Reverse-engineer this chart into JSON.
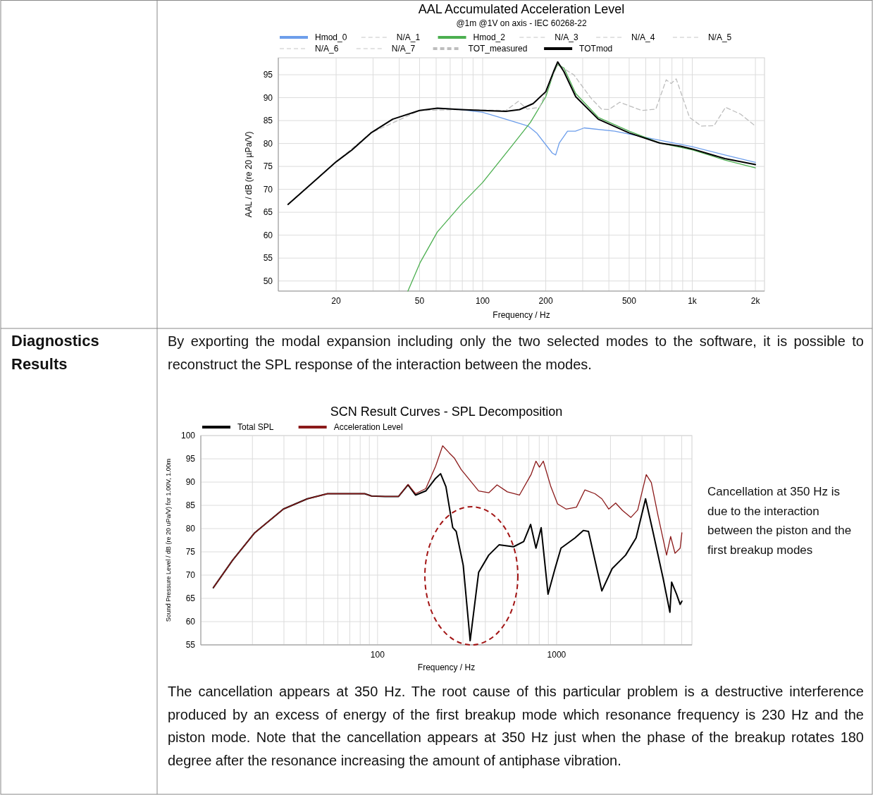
{
  "chart_data": [
    {
      "type": "line",
      "title": "AAL Accumulated Acceleration Level",
      "subtitle": "@1m @1V on axis - IEC 60268-22",
      "xlabel": "Frequency / Hz",
      "ylabel": "AAL / dB (re 20 µPa/V)",
      "log": "x",
      "grid": true,
      "legend": "top",
      "xlim": [
        10.6,
        2210
      ],
      "ylim": [
        47.8,
        98.7
      ],
      "xticks": [
        20,
        {
          "value": 30,
          "label": null
        },
        {
          "value": 40,
          "label": null
        },
        50,
        {
          "value": 60,
          "label": null
        },
        {
          "value": 70,
          "label": null
        },
        {
          "value": 80,
          "label": null
        },
        {
          "value": 90,
          "label": null
        },
        100,
        200,
        {
          "value": 300,
          "label": null
        },
        {
          "value": 400,
          "label": null
        },
        500,
        {
          "value": 600,
          "label": null
        },
        {
          "value": 700,
          "label": null
        },
        {
          "value": 800,
          "label": null
        },
        {
          "value": 900,
          "label": null
        },
        {
          "value": 1000,
          "label": "1k"
        },
        {
          "value": 2000,
          "label": "2k"
        }
      ],
      "yticks": [
        50,
        55,
        60,
        65,
        70,
        75,
        80,
        85,
        90,
        95
      ],
      "series": [
        {
          "name": "Hmod_0",
          "color": "#6d9eeb",
          "line_style": "solid",
          "x": [
            60.8,
            79,
            100,
            121,
            165,
            181,
            215,
            223,
            232,
            254,
            277,
            305,
            427,
            620,
            1000,
            1430,
            2000
          ],
          "values": [
            87.7,
            87.4,
            86.8,
            85.7,
            83.8,
            82.3,
            77.9,
            77.5,
            80.1,
            82.7,
            82.7,
            83.4,
            82.7,
            81.2,
            79.3,
            77.5,
            75.9
          ]
        },
        {
          "name": "N/A_1",
          "color": "#d9d9d9",
          "line_style": "dashed"
        },
        {
          "name": "Hmod_2",
          "color": "#4caf50",
          "line_style": "solid",
          "x": [
            44,
            50.3,
            60.8,
            79,
            100,
            139,
            169,
            200,
            218,
            228,
            244,
            278,
            356,
            500,
            700,
            1000,
            1430,
            2000
          ],
          "values": [
            47.8,
            54.0,
            60.7,
            66.7,
            71.5,
            79.7,
            84.6,
            90.2,
            95.4,
            97.2,
            96.5,
            90.9,
            85.7,
            82.7,
            80.1,
            78.6,
            76.4,
            74.7
          ]
        },
        {
          "name": "N/A_3",
          "color": "#d9d9d9",
          "line_style": "dashed"
        },
        {
          "name": "N/A_4",
          "color": "#d9d9d9",
          "line_style": "dashed"
        },
        {
          "name": "N/A_5",
          "color": "#d9d9d9",
          "line_style": "dashed"
        },
        {
          "name": "N/A_6",
          "color": "#d9d9d9",
          "line_style": "dashed"
        },
        {
          "name": "N/A_7",
          "color": "#d9d9d9",
          "line_style": "dashed"
        },
        {
          "name": "TOT_measured",
          "color": "#bdbdbd",
          "line_style": "dashed",
          "x": [
            11.8,
            20,
            29.3,
            50,
            79,
            129,
            148,
            163,
            187,
            227,
            272,
            330,
            369,
            399,
            451,
            574,
            670,
            751,
            793,
            838,
            970,
            1105,
            1270,
            1440,
            1700,
            2000
          ],
          "values": [
            66.7,
            76.0,
            82.3,
            87.2,
            87.4,
            87.2,
            89.2,
            87.5,
            87.9,
            97.2,
            95.0,
            89.8,
            87.5,
            87.4,
            89.0,
            87.2,
            87.5,
            93.9,
            93.1,
            94.1,
            85.7,
            83.8,
            83.9,
            87.9,
            86.4,
            83.8
          ]
        },
        {
          "name": "TOTmod",
          "color": "#000000",
          "line_style": "solid",
          "x": [
            11.8,
            20,
            23.8,
            29.3,
            37.2,
            50,
            60.8,
            79,
            100,
            129,
            150,
            174,
            200,
            218,
            228,
            244,
            278,
            356,
            500,
            700,
            880,
            1000,
            1430,
            2000
          ],
          "values": [
            66.7,
            76.0,
            78.6,
            82.3,
            85.3,
            87.2,
            87.7,
            87.4,
            87.2,
            87.0,
            87.4,
            88.7,
            91.3,
            95.7,
            97.8,
            95.7,
            90.2,
            85.3,
            82.3,
            80.1,
            79.4,
            78.8,
            76.7,
            75.4
          ]
        }
      ]
    },
    {
      "type": "line",
      "title": "SCN Result Curves - SPL Decomposition",
      "xlabel": "Frequency / Hz",
      "ylabel": "Sound Pressure Level / dB (re 20 uPa/V) for 1.00V, 1.00m",
      "log": "x",
      "grid": true,
      "legend": "top",
      "xlim": [
        10.3,
        5700
      ],
      "ylim": [
        55,
        100
      ],
      "xticks": [
        {
          "value": 20,
          "label": null
        },
        {
          "value": 30,
          "label": null
        },
        {
          "value": 40,
          "label": null
        },
        {
          "value": 50,
          "label": null
        },
        {
          "value": 60,
          "label": null
        },
        {
          "value": 70,
          "label": null
        },
        {
          "value": 80,
          "label": null
        },
        {
          "value": 90,
          "label": null
        },
        100,
        {
          "value": 200,
          "label": null
        },
        {
          "value": 300,
          "label": null
        },
        {
          "value": 400,
          "label": null
        },
        {
          "value": 500,
          "label": null
        },
        {
          "value": 600,
          "label": null
        },
        {
          "value": 700,
          "label": null
        },
        {
          "value": 800,
          "label": null
        },
        {
          "value": 900,
          "label": null
        },
        1000,
        {
          "value": 2000,
          "label": null
        },
        {
          "value": 3000,
          "label": null
        },
        {
          "value": 4000,
          "label": null
        },
        {
          "value": 5000,
          "label": null
        }
      ],
      "yticks": [
        55,
        60,
        65,
        70,
        75,
        80,
        85,
        90,
        95,
        100
      ],
      "series": [
        {
          "name": "Total SPL",
          "color": "#000000",
          "line_style": "solid",
          "x": [
            12.1,
            15.5,
            20.6,
            29.8,
            40.5,
            52.5,
            84.8,
            92.5,
            110,
            131,
            148,
            163,
            186,
            211,
            225,
            241,
            263,
            275,
            301,
            329,
            367,
            418,
            477,
            575,
            655,
            716,
            767,
            820,
            896,
            980,
            1058,
            1267,
            1410,
            1507,
            1790,
            2044,
            2430,
            2780,
            3140,
            3450,
            3940,
            4295,
            4390,
            4680,
            4900,
            5010
          ],
          "values": [
            67.3,
            73.2,
            79.1,
            84.2,
            86.4,
            87.5,
            87.5,
            87.0,
            86.9,
            86.9,
            89.4,
            87.2,
            88.1,
            90.8,
            91.8,
            89.0,
            80.2,
            79.4,
            72.1,
            55.9,
            70.6,
            74.3,
            76.5,
            76.1,
            77.2,
            80.9,
            75.8,
            80.2,
            65.9,
            71.4,
            75.8,
            78.0,
            79.6,
            79.4,
            66.6,
            71.4,
            74.3,
            78.0,
            86.4,
            79.4,
            69.2,
            62.0,
            68.5,
            65.9,
            63.7,
            64.4
          ]
        },
        {
          "name": "Acceleration Level",
          "color": "#8b1a1a",
          "line_style": "solid",
          "x": [
            12.1,
            15.5,
            20.6,
            29.8,
            40.5,
            52.5,
            84.8,
            92.5,
            110,
            131,
            148,
            163,
            186,
            211,
            231,
            251,
            268,
            293,
            367,
            418,
            465,
            531,
            620,
            720,
            767,
            802,
            843,
            929,
            1013,
            1129,
            1291,
            1438,
            1638,
            1790,
            1957,
            2137,
            2334,
            2601,
            2839,
            3168,
            3381,
            3690,
            4115,
            4336,
            4587,
            4900,
            5010
          ],
          "values": [
            67.3,
            73.2,
            79.1,
            84.2,
            86.4,
            87.5,
            87.5,
            87.0,
            86.9,
            86.9,
            89.5,
            87.5,
            88.6,
            93.4,
            97.8,
            96.3,
            95.2,
            92.7,
            88.1,
            87.7,
            89.4,
            87.9,
            87.2,
            91.6,
            94.5,
            93.2,
            94.5,
            89.0,
            85.3,
            84.2,
            84.6,
            88.3,
            87.5,
            86.4,
            84.2,
            85.5,
            83.9,
            82.4,
            84.0,
            91.6,
            89.9,
            82.7,
            74.3,
            78.3,
            74.7,
            75.8,
            79.1
          ]
        }
      ],
      "annotations": [
        "Diagnostics Results",
        "By exporting the modal expansion including only the two selected modes to the software, it is possible to reconstruct the SPL response of the interaction between the modes.",
        "The cancellation appears at 350 Hz. The root cause of this particular problem is a destructive interference produced by an excess of energy of the first breakup mode which resonance frequency is 230 Hz and the piston mode. Note that the cancellation appears at 350 Hz just when the phase of the breakup rotates 180 degree after the resonance increasing the amount of antiphase vibration.",
        "Cancellation at 350 Hz is due to the interaction between the piston and the first breakup modes"
      ]
    }
  ]
}
